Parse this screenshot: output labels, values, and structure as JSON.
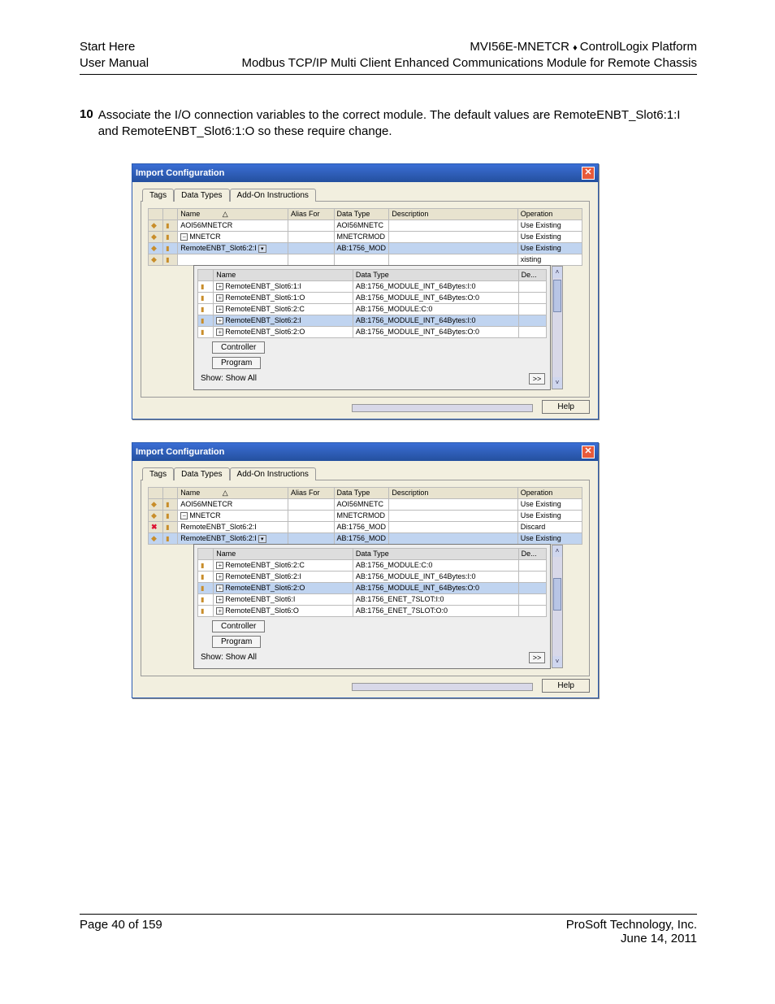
{
  "header": {
    "left1": "Start Here",
    "left2": "User Manual",
    "right1a": "MVI56E-MNETCR",
    "right1b": "ControlLogix Platform",
    "right2": "Modbus TCP/IP Multi Client Enhanced Communications Module for Remote Chassis"
  },
  "step": {
    "num": "10",
    "text": "Associate the I/O connection variables to the correct module. The default values are RemoteENBT_Slot6:1:I and RemoteENBT_Slot6:1:O so these require change."
  },
  "dlg_title": "Import Configuration",
  "tabs": [
    "Tags",
    "Data Types",
    "Add-On Instructions"
  ],
  "grid_cols": {
    "name": "Name",
    "alias": "Alias For",
    "dtype": "Data Type",
    "desc": "Description",
    "op": "Operation"
  },
  "dlg1": {
    "rows": [
      {
        "name": "AOI56MNETCR",
        "dtype": "AOI56MNETC",
        "op": "Use Existing"
      },
      {
        "name": "MNETCR",
        "dtype": "MNETCRMOD",
        "op": "Use Existing",
        "minus": true
      },
      {
        "name": "RemoteENBT_Slot6:2:I",
        "dtype": "AB:1756_MOD",
        "op": "Use Existing",
        "sel": true,
        "dd": true
      },
      {
        "name": "",
        "dtype": "",
        "op": "xisting"
      }
    ],
    "dd_cols": {
      "name": "Name",
      "dtype": "Data Type",
      "de": "De..."
    },
    "dd_rows": [
      {
        "name": "RemoteENBT_Slot6:1:I",
        "dtype": "AB:1756_MODULE_INT_64Bytes:I:0"
      },
      {
        "name": "RemoteENBT_Slot6:1:O",
        "dtype": "AB:1756_MODULE_INT_64Bytes:O:0"
      },
      {
        "name": "RemoteENBT_Slot6:2:C",
        "dtype": "AB:1756_MODULE:C:0"
      },
      {
        "name": "RemoteENBT_Slot6:2:I",
        "dtype": "AB:1756_MODULE_INT_64Bytes:I:0",
        "sel": true
      },
      {
        "name": "RemoteENBT_Slot6:2:O",
        "dtype": "AB:1756_MODULE_INT_64Bytes:O:0"
      }
    ],
    "btns": {
      "controller": "Controller",
      "program": "Program"
    },
    "show": "Show: Show All",
    "help": "Help"
  },
  "dlg2": {
    "rows": [
      {
        "name": "AOI56MNETCR",
        "dtype": "AOI56MNETC",
        "op": "Use Existing"
      },
      {
        "name": "MNETCR",
        "dtype": "MNETCRMOD",
        "op": "Use Existing",
        "minus": true
      },
      {
        "name": "RemoteENBT_Slot6:2:I",
        "dtype": "AB:1756_MOD",
        "op": "Discard",
        "x": true
      },
      {
        "name": "RemoteENBT_Slot6:2:I",
        "dtype": "AB:1756_MOD",
        "op": "Use Existing",
        "sel": true,
        "dd": true
      }
    ],
    "dd_rows": [
      {
        "name": "RemoteENBT_Slot6:2:C",
        "dtype": "AB:1756_MODULE:C:0"
      },
      {
        "name": "RemoteENBT_Slot6:2:I",
        "dtype": "AB:1756_MODULE_INT_64Bytes:I:0"
      },
      {
        "name": "RemoteENBT_Slot6:2:O",
        "dtype": "AB:1756_MODULE_INT_64Bytes:O:0",
        "sel": true
      },
      {
        "name": "RemoteENBT_Slot6:I",
        "dtype": "AB:1756_ENET_7SLOT:I:0"
      },
      {
        "name": "RemoteENBT_Slot6:O",
        "dtype": "AB:1756_ENET_7SLOT:O:0"
      }
    ]
  },
  "footer": {
    "page": "Page 40 of 159",
    "company": "ProSoft Technology, Inc.",
    "date": "June 14, 2011"
  }
}
